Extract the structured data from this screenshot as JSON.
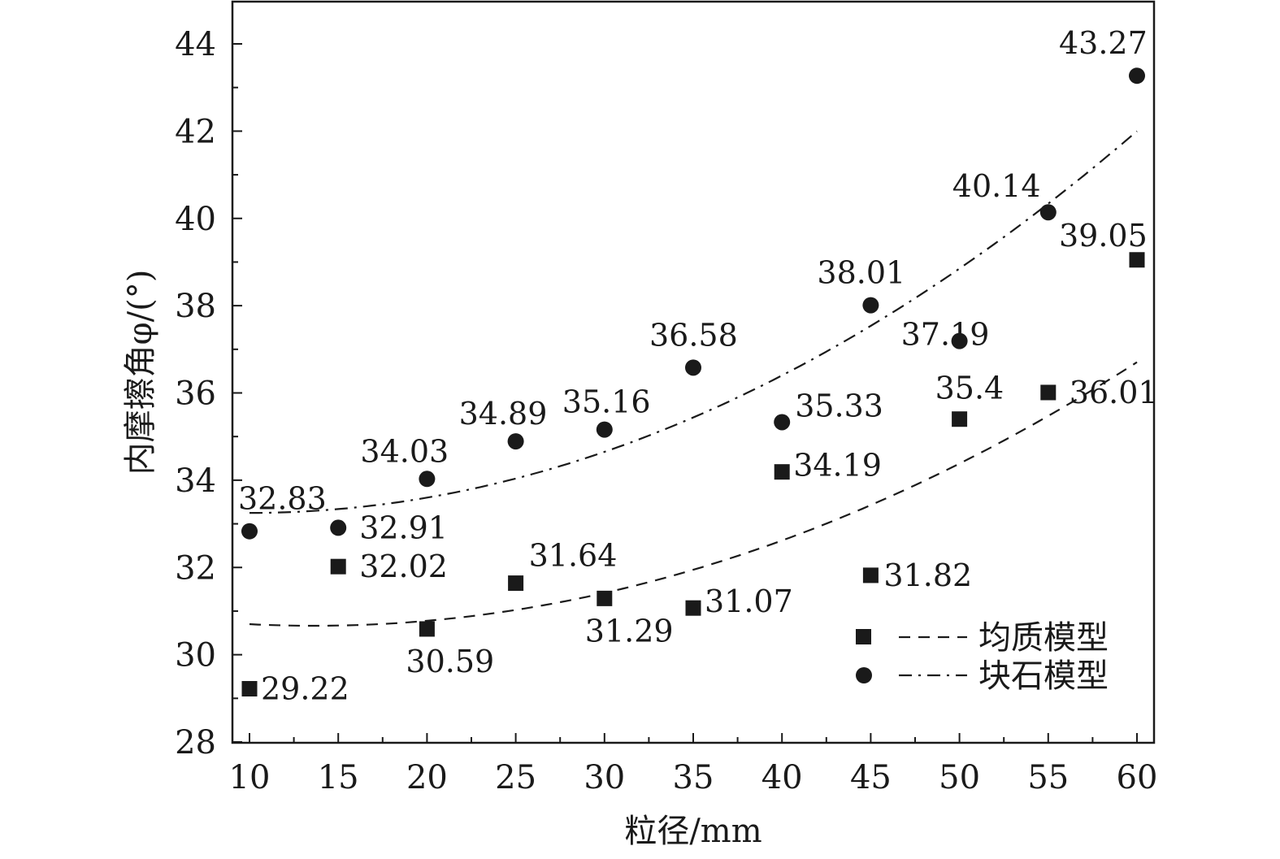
{
  "chart_data": {
    "type": "scatter",
    "xlabel": "粒径/mm",
    "ylabel": "内摩擦角φ/(°)",
    "xlim": [
      9,
      61
    ],
    "ylim": [
      28,
      45
    ],
    "x_ticks": [
      10,
      15,
      20,
      25,
      30,
      35,
      40,
      45,
      50,
      55,
      60
    ],
    "y_ticks": [
      28,
      30,
      32,
      34,
      36,
      38,
      40,
      42,
      44
    ],
    "legend_position": "bottom-right",
    "series": [
      {
        "name": "均质模型",
        "marker": "square",
        "fit_line": "dashed",
        "color": "#1a1a1a",
        "x": [
          10,
          15,
          20,
          25,
          30,
          35,
          40,
          45,
          50,
          55,
          60
        ],
        "y": [
          29.22,
          32.02,
          30.59,
          31.64,
          31.29,
          31.07,
          34.19,
          31.82,
          35.4,
          36.01,
          39.05
        ],
        "labels": [
          "29.22",
          "32.02",
          "30.59",
          "31.64",
          "31.29",
          "31.07",
          "34.19",
          "31.82",
          "35.4",
          "36.01",
          "39.05"
        ],
        "fit_coefficients": [
          30.7,
          -0.0204,
          0.00281
        ]
      },
      {
        "name": "块石模型",
        "marker": "circle",
        "fit_line": "dashdot",
        "color": "#1a1a1a",
        "x": [
          10,
          15,
          20,
          25,
          30,
          35,
          40,
          45,
          50,
          55,
          60
        ],
        "y": [
          32.83,
          32.91,
          34.03,
          34.89,
          35.16,
          36.58,
          35.33,
          38.01,
          37.19,
          40.14,
          43.27
        ],
        "labels": [
          "32.83",
          "32.91",
          "34.03",
          "34.89",
          "35.16",
          "36.58",
          "35.33",
          "38.01",
          "37.19",
          "40.14",
          "43.27"
        ],
        "fit_coefficients": [
          33.25,
          0.0,
          0.0035
        ]
      }
    ]
  }
}
